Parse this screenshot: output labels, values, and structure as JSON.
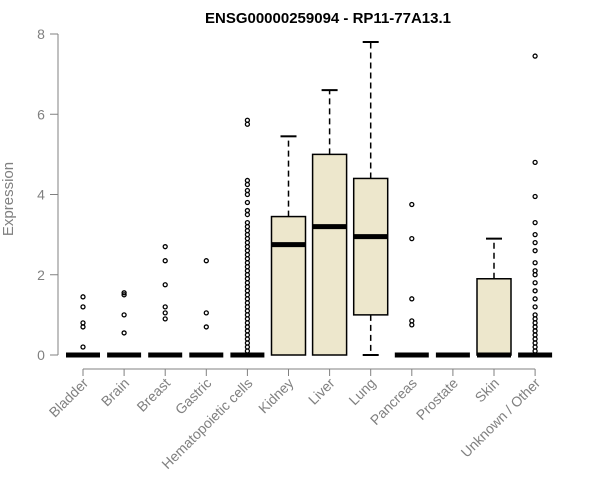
{
  "chart_data": {
    "type": "box",
    "title": "ENSG00000259094 - RP11-77A13.1",
    "xlabel": "",
    "ylabel": "Expression",
    "ylim": [
      0,
      8
    ],
    "yticks": [
      0,
      2,
      4,
      6,
      8
    ],
    "categories": [
      "Bladder",
      "Brain",
      "Breast",
      "Gastric",
      "Hematopoietic cells",
      "Kidney",
      "Liver",
      "Lung",
      "Pancreas",
      "Prostate",
      "Skin",
      "Unknown / Other"
    ],
    "boxes": [
      {
        "name": "Bladder",
        "q1": 0,
        "median": 0,
        "q3": 0,
        "whisker_low": 0,
        "whisker_high": 0,
        "outliers": [
          0.2,
          0.7,
          0.8,
          1.2,
          1.45
        ]
      },
      {
        "name": "Brain",
        "q1": 0,
        "median": 0,
        "q3": 0,
        "whisker_low": 0,
        "whisker_high": 0,
        "outliers": [
          0.55,
          1.0,
          1.5,
          1.55
        ]
      },
      {
        "name": "Breast",
        "q1": 0,
        "median": 0,
        "q3": 0,
        "whisker_low": 0,
        "whisker_high": 0,
        "outliers": [
          0.9,
          1.05,
          1.2,
          1.75,
          2.35,
          2.7
        ]
      },
      {
        "name": "Gastric",
        "q1": 0,
        "median": 0,
        "q3": 0,
        "whisker_low": 0,
        "whisker_high": 0,
        "outliers": [
          0.7,
          1.05,
          2.35
        ]
      },
      {
        "name": "Hematopoietic cells",
        "q1": 0,
        "median": 0,
        "q3": 0,
        "whisker_low": 0,
        "whisker_high": 0,
        "outliers": [
          0.1,
          0.2,
          0.3,
          0.4,
          0.5,
          0.6,
          0.7,
          0.8,
          0.9,
          1.0,
          1.1,
          1.2,
          1.3,
          1.4,
          1.5,
          1.6,
          1.7,
          1.8,
          1.9,
          2.0,
          2.1,
          2.2,
          2.3,
          2.4,
          2.5,
          2.6,
          2.7,
          2.8,
          2.9,
          3.0,
          3.1,
          3.2,
          3.3,
          3.5,
          3.6,
          3.8,
          4.0,
          4.1,
          4.25,
          4.35,
          5.75,
          5.85
        ]
      },
      {
        "name": "Kidney",
        "q1": 0,
        "median": 2.75,
        "q3": 3.45,
        "whisker_low": 0,
        "whisker_high": 5.45,
        "outliers": []
      },
      {
        "name": "Liver",
        "q1": 0,
        "median": 3.2,
        "q3": 5.0,
        "whisker_low": 0,
        "whisker_high": 6.6,
        "outliers": []
      },
      {
        "name": "Lung",
        "q1": 1.0,
        "median": 2.95,
        "q3": 4.4,
        "whisker_low": 0,
        "whisker_high": 7.8,
        "outliers": []
      },
      {
        "name": "Pancreas",
        "q1": 0,
        "median": 0,
        "q3": 0,
        "whisker_low": 0,
        "whisker_high": 0,
        "outliers": [
          0.75,
          0.85,
          1.4,
          2.9,
          3.75
        ]
      },
      {
        "name": "Prostate",
        "q1": 0,
        "median": 0,
        "q3": 0,
        "whisker_low": 0,
        "whisker_high": 0,
        "outliers": []
      },
      {
        "name": "Skin",
        "q1": 0,
        "median": 0,
        "q3": 1.9,
        "whisker_low": 0,
        "whisker_high": 2.9,
        "outliers": []
      },
      {
        "name": "Unknown / Other",
        "q1": 0,
        "median": 0,
        "q3": 0,
        "whisker_low": 0,
        "whisker_high": 0,
        "outliers": [
          0.1,
          0.2,
          0.3,
          0.4,
          0.5,
          0.6,
          0.7,
          0.8,
          0.9,
          1.0,
          1.2,
          1.4,
          1.6,
          1.8,
          2.0,
          2.1,
          2.3,
          2.6,
          2.8,
          3.0,
          3.3,
          3.95,
          4.8,
          7.45
        ]
      }
    ],
    "colors": {
      "box_fill": "#ede7cc",
      "stroke": "#000000",
      "axis": "#808080"
    }
  }
}
